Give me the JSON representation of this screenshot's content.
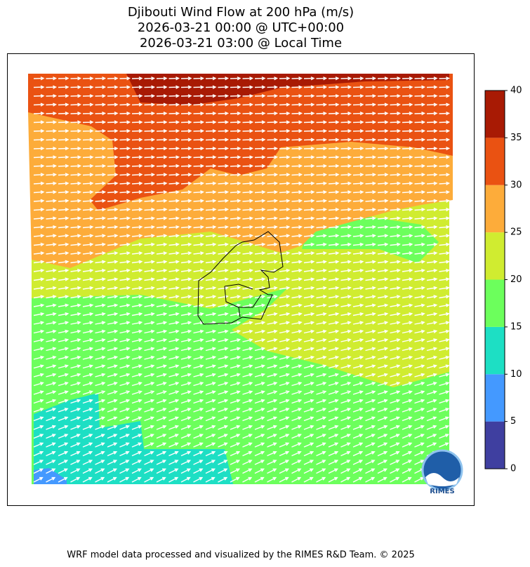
{
  "title": [
    "Djibouti Wind Flow at 200 hPa (m/s)",
    "2026-03-21 00:00 @ UTC+00:00",
    "2026-03-21 03:00 @ Local Time"
  ],
  "colorbar": {
    "levels": [
      0,
      5,
      10,
      15,
      20,
      25,
      30,
      35,
      40
    ],
    "colors": [
      "#3f3fa0",
      "#4499ff",
      "#1ddfc4",
      "#6cff5c",
      "#d0ec30",
      "#fdac3a",
      "#ea5212",
      "#a81a04"
    ]
  },
  "logo": "RIMES",
  "footer": "WRF model data processed and visualized by the RIMES R&D Team. © 2025"
}
